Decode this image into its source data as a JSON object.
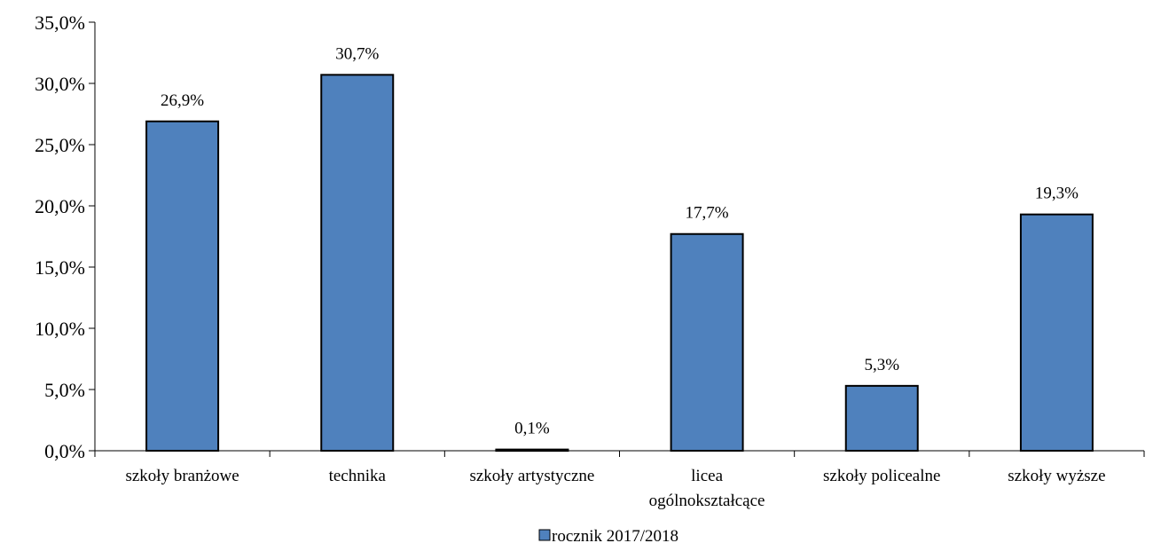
{
  "chart_data": {
    "type": "bar",
    "categories": [
      [
        "szkoły branżowe"
      ],
      [
        "technika"
      ],
      [
        "szkoły  artystyczne"
      ],
      [
        "licea",
        "ogólnokształcące"
      ],
      [
        "szkoły policealne"
      ],
      [
        "szkoły wyższe"
      ]
    ],
    "series": [
      {
        "name": "rocznik 2017/2018",
        "values": [
          26.9,
          30.7,
          0.1,
          17.7,
          5.3,
          19.3
        ],
        "data_labels": [
          "26,9%",
          "30,7%",
          "0,1%",
          "17,7%",
          "5,3%",
          "19,3%"
        ],
        "color": "#4F81BD"
      }
    ],
    "ylim": [
      0,
      35
    ],
    "yticks": [
      0,
      5,
      10,
      15,
      20,
      25,
      30,
      35
    ],
    "ytick_labels": [
      "0,0%",
      "5,0%",
      "10,0%",
      "15,0%",
      "20,0%",
      "25,0%",
      "30,0%",
      "35,0%"
    ],
    "grid": false,
    "legend_position": "bottom",
    "title": "",
    "xlabel": "",
    "ylabel": ""
  }
}
